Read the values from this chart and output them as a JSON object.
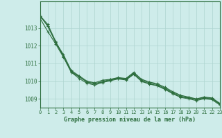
{
  "title": "Graphe pression niveau de la mer (hPa)",
  "background_color": "#ceecea",
  "grid_color": "#aed4d0",
  "line_color": "#2d6e3e",
  "xlim": [
    0,
    23
  ],
  "ylim": [
    1008.5,
    1014.5
  ],
  "yticks": [
    1009,
    1010,
    1011,
    1012,
    1013
  ],
  "xticks": [
    0,
    1,
    2,
    3,
    4,
    5,
    6,
    7,
    8,
    9,
    10,
    11,
    12,
    13,
    14,
    15,
    16,
    17,
    18,
    19,
    20,
    21,
    22,
    23
  ],
  "series": [
    [
      1013.7,
      1013.1,
      1012.2,
      1011.4,
      1010.5,
      1010.25,
      1009.95,
      1009.85,
      1009.95,
      1010.05,
      1010.15,
      1010.1,
      1010.4,
      1010.0,
      1009.85,
      1009.75,
      1009.55,
      1009.3,
      1009.1,
      1009.05,
      1008.95,
      1009.05,
      1009.0,
      1008.7
    ],
    [
      1013.7,
      1013.1,
      1012.2,
      1011.5,
      1010.6,
      1010.3,
      1010.0,
      1009.9,
      1010.05,
      1010.1,
      1010.2,
      1010.15,
      1010.5,
      1010.1,
      1009.95,
      1009.85,
      1009.65,
      1009.4,
      1009.2,
      1009.1,
      1009.0,
      1009.1,
      1009.05,
      1008.75
    ],
    [
      1013.7,
      1013.2,
      1012.25,
      1011.4,
      1010.55,
      1010.25,
      1009.95,
      1009.85,
      1009.98,
      1010.08,
      1010.18,
      1010.12,
      1010.45,
      1010.05,
      1009.9,
      1009.8,
      1009.6,
      1009.35,
      1009.15,
      1009.07,
      1008.97,
      1009.07,
      1009.02,
      1008.72
    ],
    [
      1013.55,
      1012.8,
      1012.1,
      1011.35,
      1010.5,
      1010.15,
      1009.88,
      1009.78,
      1009.92,
      1010.02,
      1010.12,
      1010.06,
      1010.38,
      1009.98,
      1009.83,
      1009.73,
      1009.53,
      1009.28,
      1009.08,
      1009.0,
      1008.9,
      1009.0,
      1008.95,
      1008.65
    ]
  ]
}
